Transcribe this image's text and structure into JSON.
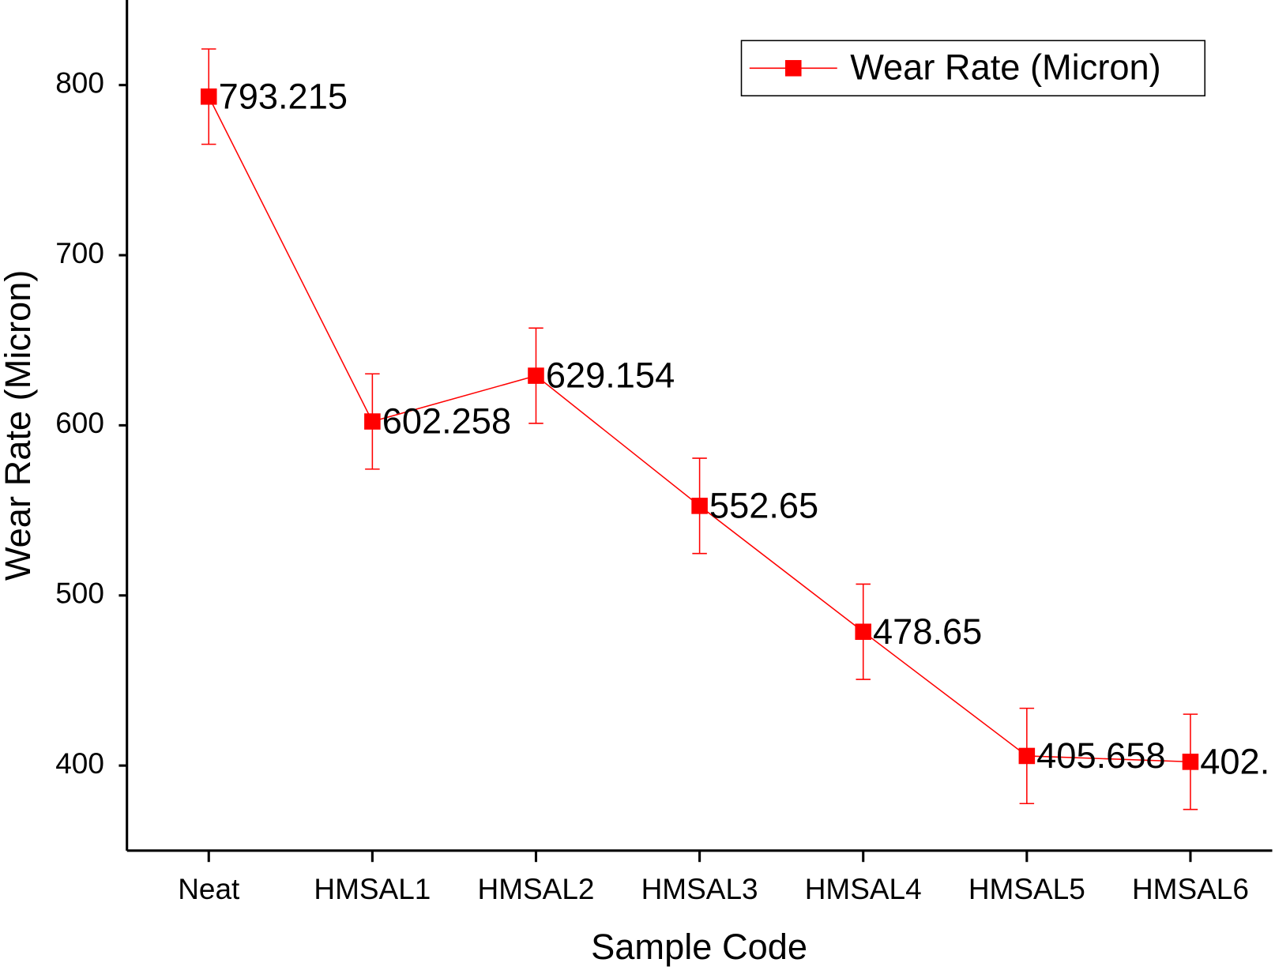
{
  "chart_data": {
    "type": "line",
    "x_label": "Sample Code",
    "y_label": "Wear Rate (Micron)",
    "categories": [
      "Neat",
      "HMSAL1",
      "HMSAL2",
      "HMSAL3",
      "HMSAL4",
      "HMSAL5",
      "HMSAL6"
    ],
    "series": [
      {
        "name": "Wear Rate (Micron)",
        "color": "#ff0000",
        "values": [
          793.215,
          602.258,
          629.154,
          552.65,
          478.65,
          405.658,
          402.2
        ],
        "value_labels": [
          "793.215",
          "602.258",
          "629.154",
          "552.65",
          "478.65",
          "405.658",
          "402."
        ],
        "errors": [
          28,
          28,
          28,
          28,
          28,
          28,
          28
        ]
      }
    ],
    "ylim": [
      350,
      850
    ],
    "yticks": [
      400,
      500,
      600,
      700,
      800
    ],
    "legend": "upper right"
  }
}
